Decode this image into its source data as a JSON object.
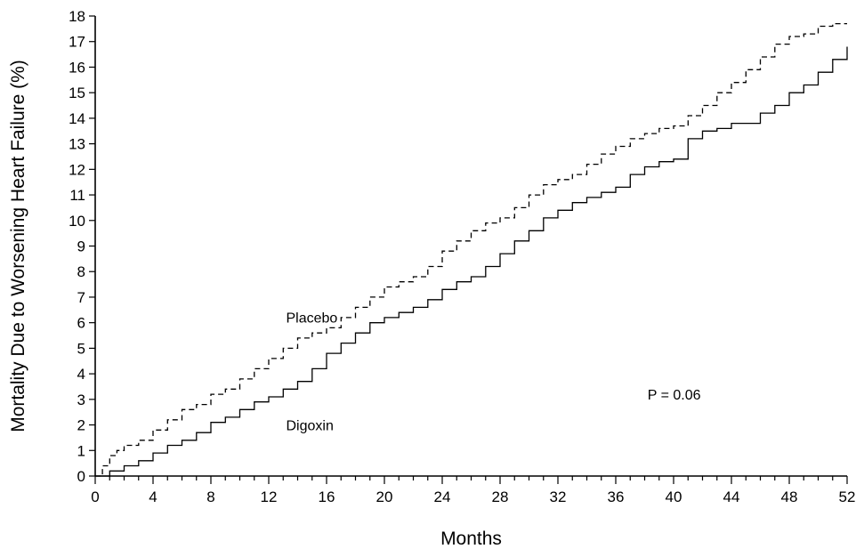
{
  "chart_data": {
    "type": "line",
    "xlabel": "Months",
    "ylabel": "Mortality Due to Worsening Heart Failure (%)",
    "xlim": [
      0,
      52
    ],
    "ylim": [
      0,
      18
    ],
    "x_ticks_major": [
      0,
      4,
      8,
      12,
      16,
      20,
      24,
      28,
      32,
      36,
      40,
      44,
      48,
      52
    ],
    "x_ticks_minor_step": 1,
    "y_ticks": [
      0,
      1,
      2,
      3,
      4,
      5,
      6,
      7,
      8,
      9,
      10,
      11,
      12,
      13,
      14,
      15,
      16,
      17,
      18
    ],
    "grid": false,
    "series": [
      {
        "name": "Placebo",
        "style": "dashed",
        "color": "#000000",
        "x": [
          0,
          0.5,
          1,
          1.5,
          2,
          3,
          4,
          5,
          6,
          7,
          8,
          9,
          10,
          11,
          12,
          13,
          14,
          15,
          16,
          17,
          18,
          19,
          20,
          21,
          22,
          23,
          24,
          25,
          26,
          27,
          28,
          29,
          30,
          31,
          32,
          33,
          34,
          35,
          36,
          37,
          38,
          39,
          40,
          41,
          42,
          43,
          44,
          45,
          46,
          47,
          48,
          49,
          50,
          51,
          52
        ],
        "y": [
          0,
          0.4,
          0.8,
          1.0,
          1.2,
          1.4,
          1.8,
          2.2,
          2.6,
          2.8,
          3.2,
          3.4,
          3.8,
          4.2,
          4.6,
          5.0,
          5.4,
          5.6,
          5.8,
          6.2,
          6.6,
          7.0,
          7.4,
          7.6,
          7.8,
          8.2,
          8.8,
          9.2,
          9.6,
          9.9,
          10.1,
          10.5,
          11.0,
          11.4,
          11.6,
          11.8,
          12.2,
          12.6,
          12.9,
          13.2,
          13.4,
          13.6,
          13.7,
          14.1,
          14.5,
          15.0,
          15.4,
          15.9,
          16.4,
          16.9,
          17.2,
          17.3,
          17.6,
          17.7,
          17.7
        ]
      },
      {
        "name": "Digoxin",
        "style": "solid",
        "color": "#000000",
        "x": [
          0,
          1,
          2,
          3,
          4,
          5,
          6,
          7,
          8,
          9,
          10,
          11,
          12,
          13,
          14,
          15,
          16,
          17,
          18,
          19,
          20,
          21,
          22,
          23,
          24,
          25,
          26,
          27,
          28,
          29,
          30,
          31,
          32,
          33,
          34,
          35,
          36,
          37,
          38,
          39,
          40,
          41,
          42,
          43,
          44,
          45,
          46,
          47,
          48,
          49,
          50,
          51,
          52
        ],
        "y": [
          0,
          0.2,
          0.4,
          0.6,
          0.9,
          1.2,
          1.4,
          1.7,
          2.1,
          2.3,
          2.6,
          2.9,
          3.1,
          3.4,
          3.7,
          4.2,
          4.8,
          5.2,
          5.6,
          6.0,
          6.2,
          6.4,
          6.6,
          6.9,
          7.3,
          7.6,
          7.8,
          8.2,
          8.7,
          9.2,
          9.6,
          10.1,
          10.4,
          10.7,
          10.9,
          11.1,
          11.3,
          11.8,
          12.1,
          12.3,
          12.4,
          13.2,
          13.5,
          13.6,
          13.8,
          13.8,
          14.2,
          14.5,
          15.0,
          15.3,
          15.8,
          16.3,
          16.8
        ]
      }
    ],
    "annotations": [
      {
        "text": "Placebo",
        "x": 13.2,
        "y": 6.0
      },
      {
        "text": "Digoxin",
        "x": 13.2,
        "y": 1.8
      },
      {
        "text": "P = 0.06",
        "x": 38.2,
        "y": 3.0
      }
    ]
  }
}
